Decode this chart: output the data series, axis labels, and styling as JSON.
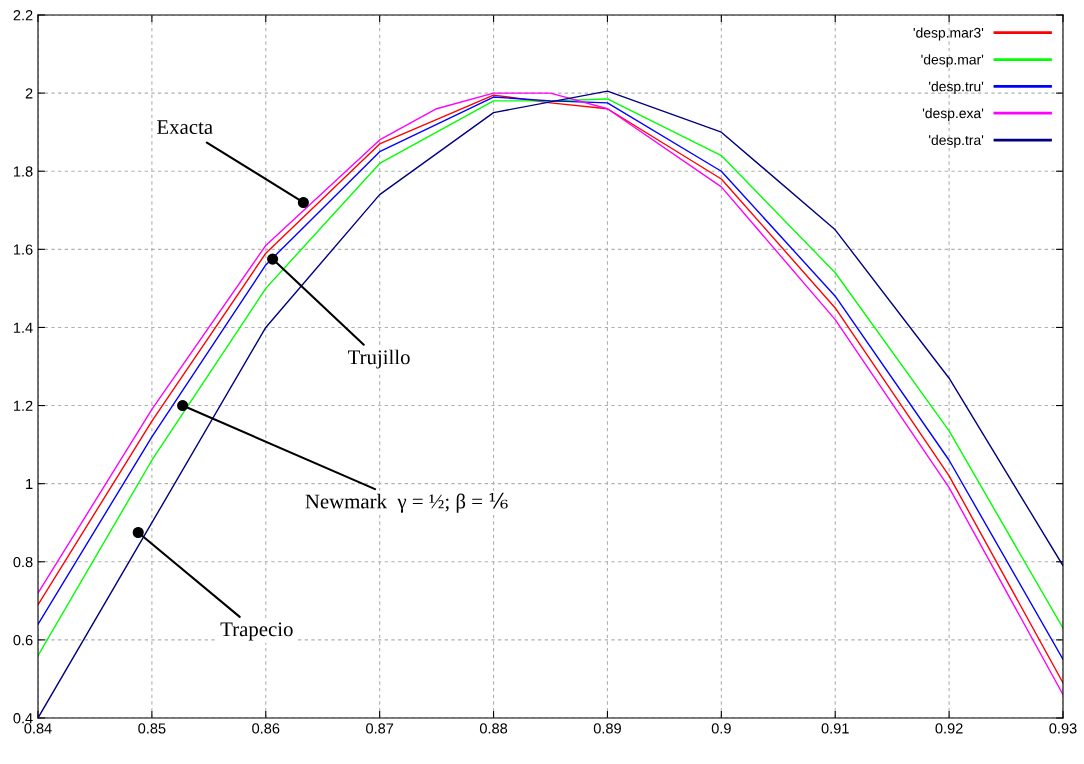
{
  "chart_data": {
    "type": "line",
    "xlim": [
      0.84,
      0.93
    ],
    "ylim": [
      0.4,
      2.2
    ],
    "xticks": [
      0.84,
      0.85,
      0.86,
      0.87,
      0.88,
      0.89,
      0.9,
      0.91,
      0.92,
      0.93
    ],
    "yticks": [
      0.4,
      0.6,
      0.8,
      1,
      1.2,
      1.4,
      1.6,
      1.8,
      2,
      2.2
    ],
    "grid": true,
    "legend": "top right",
    "marker": "none",
    "line_style": "solid",
    "series": [
      {
        "name": "'desp.mar3'",
        "color": "#ff0000",
        "x": [
          0.84,
          0.85,
          0.86,
          0.87,
          0.88,
          0.885,
          0.89,
          0.9,
          0.91,
          0.92,
          0.93
        ],
        "values": [
          0.69,
          1.16,
          1.59,
          1.87,
          1.995,
          1.975,
          1.96,
          1.78,
          1.45,
          1.02,
          0.49
        ]
      },
      {
        "name": "'desp.mar'",
        "color": "#00ff00",
        "x": [
          0.84,
          0.85,
          0.86,
          0.87,
          0.88,
          0.885,
          0.89,
          0.9,
          0.91,
          0.92,
          0.93
        ],
        "values": [
          0.56,
          1.06,
          1.5,
          1.82,
          1.98,
          1.98,
          1.985,
          1.84,
          1.54,
          1.135,
          0.63
        ]
      },
      {
        "name": "'desp.tru'",
        "color": "#0000ff",
        "x": [
          0.84,
          0.85,
          0.86,
          0.87,
          0.88,
          0.885,
          0.89,
          0.9,
          0.91,
          0.92,
          0.93
        ],
        "values": [
          0.64,
          1.12,
          1.56,
          1.85,
          1.99,
          1.98,
          1.975,
          1.8,
          1.48,
          1.06,
          0.55
        ]
      },
      {
        "name": "'desp.exa'",
        "color": "#ff00ff",
        "x": [
          0.84,
          0.85,
          0.86,
          0.87,
          0.875,
          0.88,
          0.885,
          0.89,
          0.9,
          0.91,
          0.92,
          0.93
        ],
        "values": [
          0.72,
          1.19,
          1.61,
          1.88,
          1.96,
          2.0,
          2.0,
          1.96,
          1.76,
          1.42,
          0.99,
          0.46
        ]
      },
      {
        "name": "'desp.tra'",
        "color": "#000080",
        "x": [
          0.84,
          0.85,
          0.86,
          0.87,
          0.88,
          0.89,
          0.9,
          0.91,
          0.92,
          0.93
        ],
        "values": [
          0.4,
          0.9,
          1.4,
          1.74,
          1.95,
          2.005,
          1.9,
          1.65,
          1.27,
          0.79
        ]
      }
    ],
    "annotations": [
      {
        "text": "Exacta",
        "x": 0.8633,
        "y": 1.72
      },
      {
        "text": "Trujillo",
        "x": 0.8606,
        "y": 1.575
      },
      {
        "text": "Newmark  γ = ½; β = ⅙",
        "x": 0.8527,
        "y": 1.2
      },
      {
        "text": "Trapecio",
        "x": 0.8488,
        "y": 0.875
      }
    ]
  }
}
